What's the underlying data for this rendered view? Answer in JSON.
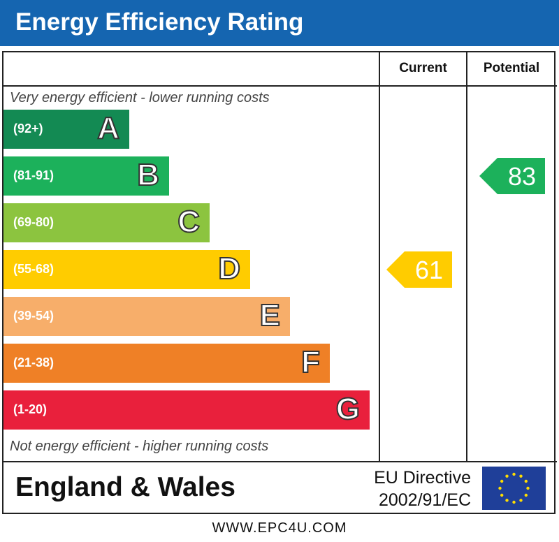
{
  "title": "Energy Efficiency Rating",
  "columns": {
    "current": "Current",
    "potential": "Potential"
  },
  "top_note": "Very energy efficient - lower running costs",
  "bottom_note": "Not energy efficient - higher running costs",
  "footer": {
    "region": "England & Wales",
    "directive_line1": "EU Directive",
    "directive_line2": "2002/91/EC",
    "flag_icon": "eu-flag-icon"
  },
  "website": "WWW.EPC4U.COM",
  "chart_data": {
    "type": "bar",
    "bands": [
      {
        "letter": "A",
        "range": "(92+)",
        "min": 92,
        "max": 100,
        "color": "#138a53"
      },
      {
        "letter": "B",
        "range": "(81-91)",
        "min": 81,
        "max": 91,
        "color": "#1cb15b"
      },
      {
        "letter": "C",
        "range": "(69-80)",
        "min": 69,
        "max": 80,
        "color": "#8cc43f"
      },
      {
        "letter": "D",
        "range": "(55-68)",
        "min": 55,
        "max": 68,
        "color": "#ffcc00"
      },
      {
        "letter": "E",
        "range": "(39-54)",
        "min": 39,
        "max": 54,
        "color": "#f7ae6a"
      },
      {
        "letter": "F",
        "range": "(21-38)",
        "min": 21,
        "max": 38,
        "color": "#ef8026"
      },
      {
        "letter": "G",
        "range": "(1-20)",
        "min": 1,
        "max": 20,
        "color": "#e9203c"
      }
    ],
    "current": {
      "value": 61,
      "label": "61",
      "band": "D",
      "color": "#ffcc00"
    },
    "potential": {
      "value": 83,
      "label": "83",
      "band": "B",
      "color": "#1cb15b"
    }
  }
}
